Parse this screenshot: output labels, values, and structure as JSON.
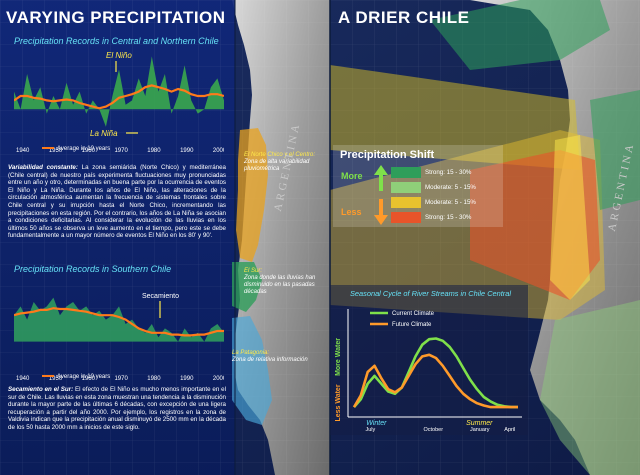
{
  "left_panel": {
    "title": "VARYING PRECIPITATION",
    "chart1": {
      "title": "Precipitation Records in Central and Northern Chile",
      "el_nino_label": "El Niño",
      "la_nina_label": "La Niña",
      "legend_label": "Average in 10 years",
      "x_ticks": [
        "1940",
        "1950",
        "1960",
        "1970",
        "1980",
        "1990",
        "2000"
      ]
    },
    "para1": {
      "lead": "Variabilidad constante:",
      "text": "La zona semiárida (Norte Chico) y mediterránea (Chile central) de nuestro país experimenta fluctuaciones muy pronunciadas entre un año y otro, determinadas en buena parte por la ocurrencia de eventos El Niño y La Niña. Durante los años de El Niño, las alteraciones de la circulación atmosférica aumentan la frecuencia de sistemas frontales sobre Chile central y su irrupción hasta el Norte Chico, incrementando las precipitaciones en esta región. Por el contrario, los años de La Niña se asocian a condiciones deficitarias. Al considerar la evolución de las lluvias en los últimos 50 años se observa un leve aumento en el tiempo, pero este se debe fundamentalmente a un mayor número de eventos El Niño en los 80' y 90'."
    },
    "chart2": {
      "title": "Precipitation Records in Southern Chile",
      "secamiento_label": "Secamiento",
      "legend_label": "Average in 10 years",
      "x_ticks": [
        "1940",
        "1950",
        "1960",
        "1970",
        "1980",
        "1990",
        "2000"
      ]
    },
    "para2": {
      "lead": "Secamiento en el Sur:",
      "text": "El efecto de El Niño es mucho menos importante en el sur de Chile. Las lluvias en esta zona muestran una tendencia a la disminución durante la mayor parte de las últimas 6 décadas, con excepción de una ligera recuperación a partir del año 2000. Por ejemplo, los registros en la zona de Valdivia indican que la precipitación anual disminuyó de 2500 mm en la década de los 50 hasta 2000 mm a inicios de este siglo."
    }
  },
  "map1": {
    "region_north": {
      "head": "El Norte Chico y el Centro:",
      "text": "Zona de alta variabilidad pluviométrica"
    },
    "region_south": {
      "head": "El Sur:",
      "text": "Zona donde las lluvias han disminuido en las pasadas décadas"
    },
    "region_patagonia": {
      "head": "La Patagonia:",
      "text": "Zona de relativa información"
    },
    "country_label": "ARGENTINA"
  },
  "right_panel": {
    "title": "A DRIER CHILE",
    "country_label": "ARGENTINA",
    "precipitation_shift": {
      "title": "Precipitation Shift",
      "more_label": "More",
      "less_label": "Less",
      "rows": [
        {
          "label": "Strong: 15 - 30%",
          "color": "#2e9e5a"
        },
        {
          "label": "Moderate: 5 - 15%",
          "color": "#8fcf79"
        },
        {
          "label": "Moderate: 5 - 15%",
          "color": "#e8c22e"
        },
        {
          "label": "Strong: 15 - 30%",
          "color": "#e8542a"
        }
      ]
    },
    "river_chart": {
      "title": "Seasonal Cycle of River Streams in Chile Central",
      "y_top_label": "More Water",
      "y_bottom_label": "Less Water",
      "legend": [
        {
          "name": "Current Climate",
          "color": "#7fe04a"
        },
        {
          "name": "Future Climate",
          "color": "#ff9a2a"
        }
      ],
      "season_winter": "Winter",
      "season_summer": "Summer",
      "x_ticks": [
        "July",
        "October",
        "January",
        "April"
      ]
    }
  },
  "chart_data": [
    {
      "type": "area",
      "title": "Precipitation Records in Central and Northern Chile",
      "x": [
        1940,
        1942,
        1944,
        1946,
        1948,
        1950,
        1952,
        1954,
        1956,
        1958,
        1960,
        1962,
        1964,
        1966,
        1968,
        1970,
        1972,
        1974,
        1976,
        1978,
        1980,
        1982,
        1984,
        1986,
        1988,
        1990,
        1992,
        1994,
        1996,
        1998,
        2000,
        2002,
        2004
      ],
      "series": [
        {
          "name": "",
          "values": [
            0.55,
            0.35,
            0.75,
            0.45,
            0.6,
            0.3,
            0.5,
            0.35,
            0.65,
            0.4,
            0.55,
            0.3,
            0.45,
            0.35,
            0.15,
            0.5,
            0.8,
            0.4,
            0.45,
            0.7,
            0.5,
            0.95,
            0.55,
            0.75,
            0.3,
            0.5,
            0.85,
            0.45,
            0.3,
            0.35,
            0.6,
            0.7,
            0.45
          ]
        },
        {
          "name": "Average in 10 years",
          "values": [
            0.45,
            0.5,
            0.5,
            0.48,
            0.47,
            0.45,
            0.44,
            0.45,
            0.46,
            0.45,
            0.42,
            0.4,
            0.38,
            0.36,
            0.38,
            0.42,
            0.48,
            0.5,
            0.52,
            0.55,
            0.6,
            0.62,
            0.6,
            0.58,
            0.55,
            0.58,
            0.56,
            0.52,
            0.5,
            0.5,
            0.52,
            0.52,
            0.5
          ]
        }
      ]
    },
    {
      "type": "area",
      "title": "Precipitation Records in Southern Chile",
      "x": [
        1940,
        1942,
        1944,
        1946,
        1948,
        1950,
        1952,
        1954,
        1956,
        1958,
        1960,
        1962,
        1964,
        1966,
        1968,
        1970,
        1972,
        1974,
        1976,
        1978,
        1980,
        1982,
        1984,
        1986,
        1988,
        1990,
        1992,
        1994,
        1996,
        1998,
        2000,
        2002,
        2004
      ],
      "series": [
        {
          "name": "",
          "values": [
            0.6,
            0.7,
            0.55,
            0.75,
            0.65,
            0.7,
            0.8,
            0.6,
            0.7,
            0.75,
            0.65,
            0.7,
            0.6,
            0.65,
            0.55,
            0.6,
            0.7,
            0.5,
            0.55,
            0.45,
            0.4,
            0.5,
            0.35,
            0.45,
            0.4,
            0.3,
            0.45,
            0.35,
            0.4,
            0.3,
            0.45,
            0.5,
            0.4
          ]
        },
        {
          "name": "Average in 10 years",
          "values": [
            0.6,
            0.62,
            0.63,
            0.64,
            0.66,
            0.66,
            0.68,
            0.67,
            0.67,
            0.66,
            0.65,
            0.64,
            0.62,
            0.6,
            0.6,
            0.6,
            0.58,
            0.55,
            0.5,
            0.45,
            0.42,
            0.4,
            0.4,
            0.4,
            0.38,
            0.38,
            0.37,
            0.37,
            0.38,
            0.38,
            0.4,
            0.42,
            0.42
          ]
        }
      ]
    },
    {
      "type": "line",
      "title": "Seasonal Cycle of River Streams in Chile Central",
      "x": [
        0,
        0.5,
        1,
        1.5,
        2,
        2.5,
        3,
        3.5,
        4,
        4.5,
        5,
        5.5,
        6,
        6.5,
        7,
        7.5,
        8,
        8.5,
        9,
        9.5,
        10,
        10.5,
        11,
        11.5,
        12
      ],
      "series": [
        {
          "name": "Current Climate",
          "values": [
            0.05,
            0.15,
            0.35,
            0.45,
            0.35,
            0.25,
            0.22,
            0.3,
            0.5,
            0.7,
            0.85,
            0.92,
            0.93,
            0.9,
            0.82,
            0.7,
            0.55,
            0.4,
            0.28,
            0.18,
            0.12,
            0.08,
            0.06,
            0.05,
            0.05
          ]
        },
        {
          "name": "Future Climate",
          "values": [
            0.05,
            0.2,
            0.5,
            0.58,
            0.42,
            0.28,
            0.24,
            0.3,
            0.45,
            0.6,
            0.7,
            0.72,
            0.68,
            0.58,
            0.45,
            0.32,
            0.22,
            0.15,
            0.1,
            0.07,
            0.05,
            0.05,
            0.05,
            0.05,
            0.05
          ]
        }
      ]
    }
  ]
}
